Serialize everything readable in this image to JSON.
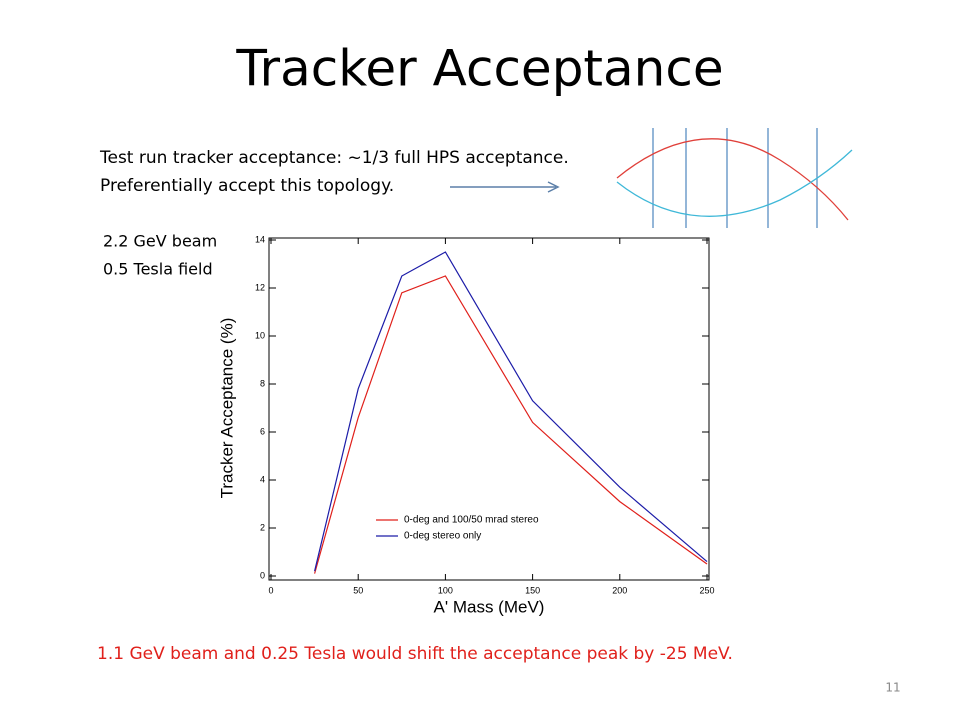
{
  "slide": {
    "title": "Tracker Acceptance",
    "notes": [
      "Test run tracker acceptance: ~1/3 full HPS acceptance.",
      "Preferentially accept this topology."
    ],
    "conditions": [
      "2.2 GeV beam",
      "0.5 Tesla field"
    ],
    "footer": "1.1 GeV beam and 0.25 Tesla would shift the acceptance peak by -25 MeV.",
    "page_number": 11
  },
  "chart_data": {
    "type": "line",
    "x_label": "A' Mass (MeV)",
    "y_label": "Tracker Acceptance (%)",
    "x": [
      25,
      50,
      75,
      100,
      150,
      200,
      250
    ],
    "series": [
      {
        "name": "0-deg and 100/50 mrad stereo",
        "color": "#e0201b",
        "values": [
          0.1,
          6.6,
          11.8,
          12.5,
          6.4,
          3.1,
          0.5
        ]
      },
      {
        "name": "0-deg stereo only",
        "color": "#1c1ca8",
        "values": [
          0.2,
          7.8,
          12.5,
          13.5,
          7.3,
          3.7,
          0.6
        ]
      }
    ],
    "xlim": [
      0,
      250
    ],
    "xticks": [
      0,
      50,
      100,
      150,
      200,
      250
    ],
    "ylim": [
      0,
      14
    ],
    "yticks": [
      0,
      2,
      4,
      6,
      8,
      10,
      12,
      14
    ],
    "grid": false,
    "legend": "lower center"
  }
}
